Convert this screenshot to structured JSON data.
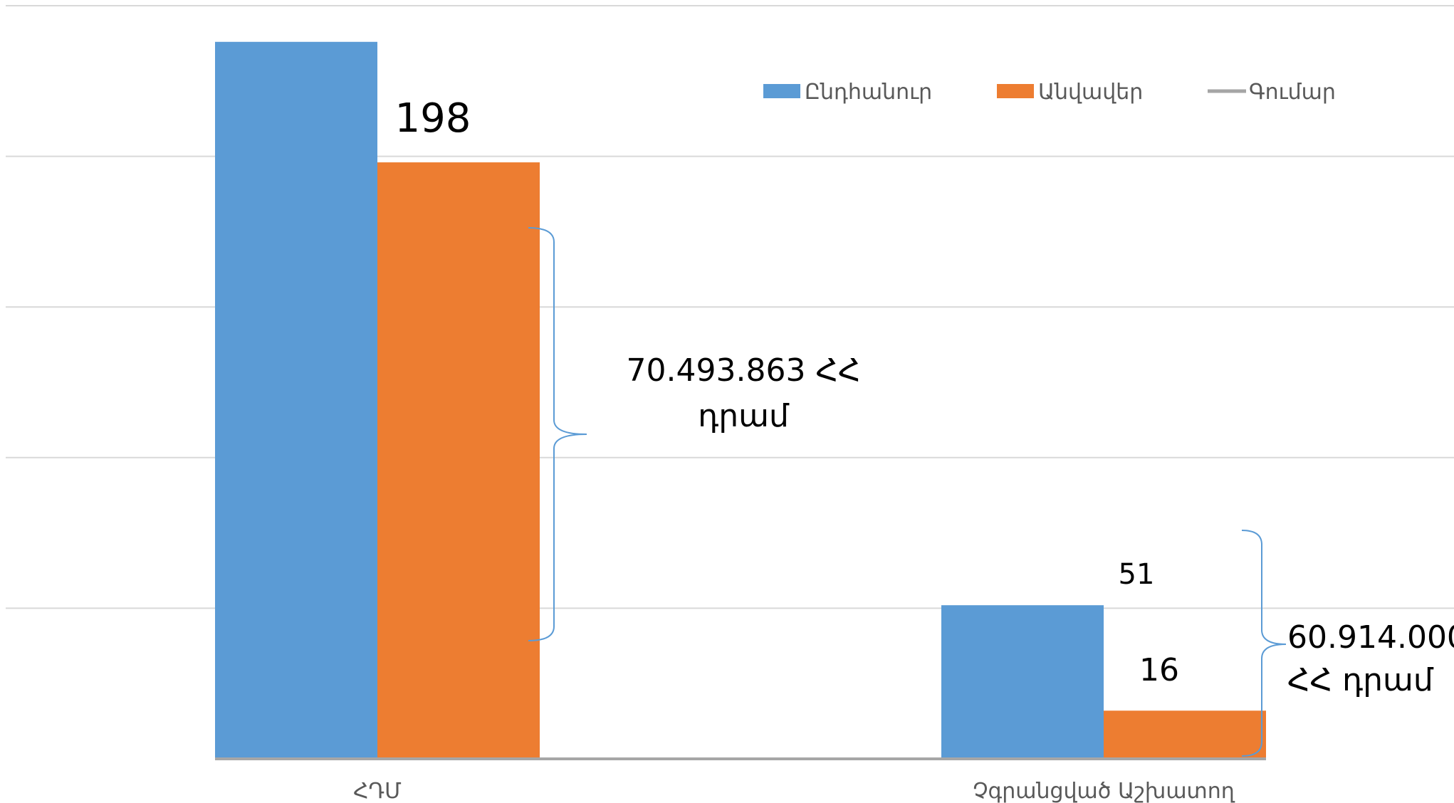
{
  "chart_data": {
    "type": "bar",
    "categories": [
      "ՀԴՄ",
      "Չգրանցված Աշխատող"
    ],
    "series": [
      {
        "name": "Ընդհանուր",
        "color": "#5b9bd5",
        "values": [
          238,
          51
        ]
      },
      {
        "name": "Անվավեր",
        "color": "#ed7d31",
        "values": [
          198,
          16
        ]
      },
      {
        "name": "Գումար",
        "color": "#a5a5a5",
        "values": [
          0,
          0
        ]
      }
    ],
    "data_labels": [
      {
        "series": 1,
        "category": 0,
        "text": "198"
      },
      {
        "series": 0,
        "category": 1,
        "text": "51"
      },
      {
        "series": 1,
        "category": 1,
        "text": "16"
      }
    ],
    "annotations": [
      {
        "lines": [
          "70.493.863 ՀՀ",
          "դրամ"
        ],
        "category": 0
      },
      {
        "lines": [
          "60.914.000",
          "ՀՀ դրամ"
        ],
        "category": 1
      }
    ],
    "ylim": [
      0,
      250
    ],
    "y_gridlines": [
      0,
      50,
      100,
      150,
      200,
      250
    ],
    "grid": true,
    "legend_position": "top-right",
    "title": "",
    "xlabel": "",
    "ylabel": ""
  }
}
